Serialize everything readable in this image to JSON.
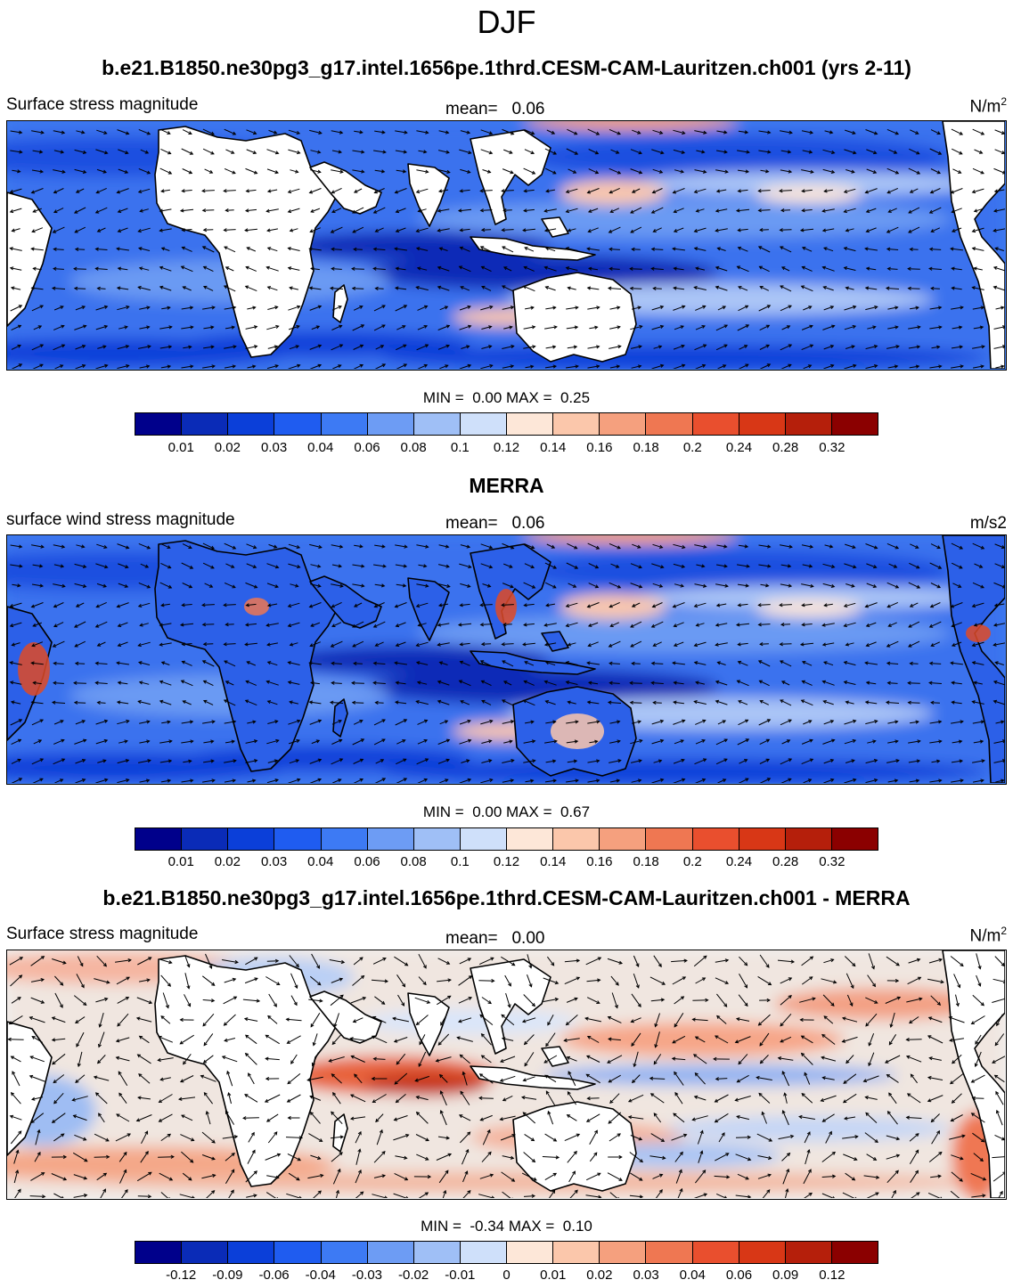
{
  "page_title": "DJF",
  "palette_seq": [
    "#00008b",
    "#0a2bb7",
    "#0b3fd9",
    "#1f5cf0",
    "#3d7af4",
    "#6d9cf4",
    "#9fbff6",
    "#cfe0fa",
    "#fde7d8",
    "#fbc7ab",
    "#f5a07e",
    "#ef7752",
    "#e94f2e",
    "#d83716",
    "#b51f0b",
    "#8b0000"
  ],
  "panels": [
    {
      "id": "model",
      "title": "b.e21.B1850.ne30pg3_g17.intel.1656pe.1thrd.CESM-CAM-Lauritzen.ch001 (yrs 2-11)",
      "left_label": "Surface stress magnitude",
      "mean_label": "mean=",
      "mean_value": "0.06",
      "units": "N/m",
      "units_sup": "2",
      "min_label": "MIN =",
      "min_value": "0.00",
      "max_label": "MAX =",
      "max_value": "0.25",
      "colorbar_ticks": [
        "0.01",
        "0.02",
        "0.03",
        "0.04",
        "0.06",
        "0.08",
        "0.1",
        "0.12",
        "0.14",
        "0.16",
        "0.18",
        "0.2",
        "0.24",
        "0.28",
        "0.32"
      ]
    },
    {
      "id": "merra",
      "title": "MERRA",
      "left_label": "surface wind stress magnitude",
      "mean_label": "mean=",
      "mean_value": "0.06",
      "units": "m/s2",
      "units_sup": "",
      "min_label": "MIN =",
      "min_value": "0.00",
      "max_label": "MAX =",
      "max_value": "0.67",
      "colorbar_ticks": [
        "0.01",
        "0.02",
        "0.03",
        "0.04",
        "0.06",
        "0.08",
        "0.1",
        "0.12",
        "0.14",
        "0.16",
        "0.18",
        "0.2",
        "0.24",
        "0.28",
        "0.32"
      ]
    },
    {
      "id": "diff",
      "title": "b.e21.B1850.ne30pg3_g17.intel.1656pe.1thrd.CESM-CAM-Lauritzen.ch001 - MERRA",
      "left_label": "Surface stress magnitude",
      "mean_label": "mean=",
      "mean_value": "0.00",
      "units": "N/m",
      "units_sup": "2",
      "min_label": "MIN =",
      "min_value": "-0.34",
      "max_label": "MAX =",
      "max_value": "0.10",
      "colorbar_ticks": [
        "-0.12",
        "-0.09",
        "-0.06",
        "-0.04",
        "-0.03",
        "-0.02",
        "-0.01",
        "0",
        "0.01",
        "0.02",
        "0.03",
        "0.04",
        "0.06",
        "0.09",
        "0.12"
      ]
    }
  ]
}
